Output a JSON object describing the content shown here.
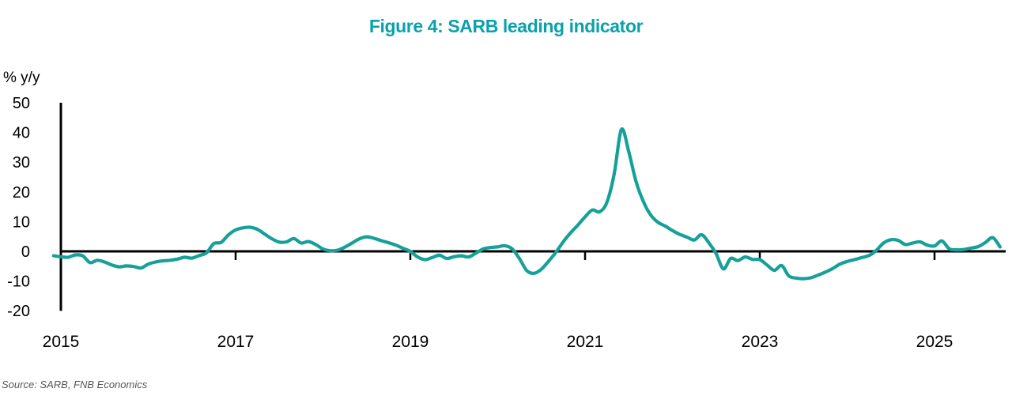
{
  "chart": {
    "title": "Figure 4: SARB leading indicator",
    "ylabel": "% y/y",
    "source": "Source: SARB, FNB Economics"
  },
  "colors": {
    "line": "#16a099",
    "title": "#0aa1ac",
    "axis": "#000000",
    "tick_label": "#000000",
    "source_text": "#575756"
  },
  "chart_data": {
    "type": "line",
    "title": "Figure 4: SARB leading indicator",
    "xlabel": "",
    "ylabel": "% y/y",
    "grid": false,
    "legend": "none",
    "x_ticks": [
      2015,
      2017,
      2019,
      2021,
      2023,
      2025
    ],
    "y_ticks": [
      50,
      40,
      30,
      20,
      10,
      0,
      -10,
      -20
    ],
    "xlim": [
      2015,
      2025.85
    ],
    "ylim": [
      -20,
      50
    ],
    "source": "Source: SARB, FNB Economics",
    "series": [
      {
        "name": "SARB leading indicator, % y/y",
        "x_start": 2014.9167,
        "x_step_years": 0.0833333,
        "values": [
          -1.5,
          -1.8,
          -2.0,
          -1.2,
          -1.5,
          -3.8,
          -3.0,
          -3.6,
          -4.6,
          -5.2,
          -4.9,
          -5.1,
          -5.6,
          -4.3,
          -3.6,
          -3.2,
          -3.0,
          -2.6,
          -2.0,
          -2.3,
          -1.4,
          -0.5,
          2.6,
          3.0,
          5.5,
          7.2,
          7.9,
          8.1,
          7.4,
          5.8,
          4.2,
          3.1,
          3.2,
          4.3,
          2.8,
          3.3,
          2.3,
          0.8,
          0.2,
          0.4,
          1.4,
          2.8,
          4.2,
          4.9,
          4.4,
          3.6,
          2.9,
          2.1,
          1.0,
          0.0,
          -1.9,
          -2.8,
          -2.1,
          -1.3,
          -2.4,
          -1.8,
          -1.5,
          -1.9,
          -0.6,
          0.8,
          1.3,
          1.5,
          1.9,
          0.8,
          -2.5,
          -6.5,
          -7.4,
          -6.0,
          -3.3,
          -0.3,
          3.2,
          6.2,
          8.8,
          11.6,
          13.9,
          13.3,
          16.5,
          26.0,
          41.0,
          33.5,
          23.5,
          16.8,
          12.3,
          9.8,
          8.5,
          7.0,
          5.7,
          4.8,
          3.8,
          5.6,
          2.9,
          -0.8,
          -5.9,
          -2.4,
          -3.1,
          -1.9,
          -2.7,
          -2.8,
          -4.6,
          -6.4,
          -4.8,
          -8.3,
          -9.0,
          -9.2,
          -8.9,
          -8.0,
          -7.0,
          -5.8,
          -4.3,
          -3.4,
          -2.8,
          -2.1,
          -1.4,
          0.3,
          2.8,
          3.9,
          3.7,
          2.3,
          2.8,
          3.2,
          2.1,
          1.8,
          3.5,
          0.9,
          0.5,
          0.6,
          1.1,
          1.6,
          3.0,
          4.6,
          1.5
        ]
      }
    ]
  }
}
